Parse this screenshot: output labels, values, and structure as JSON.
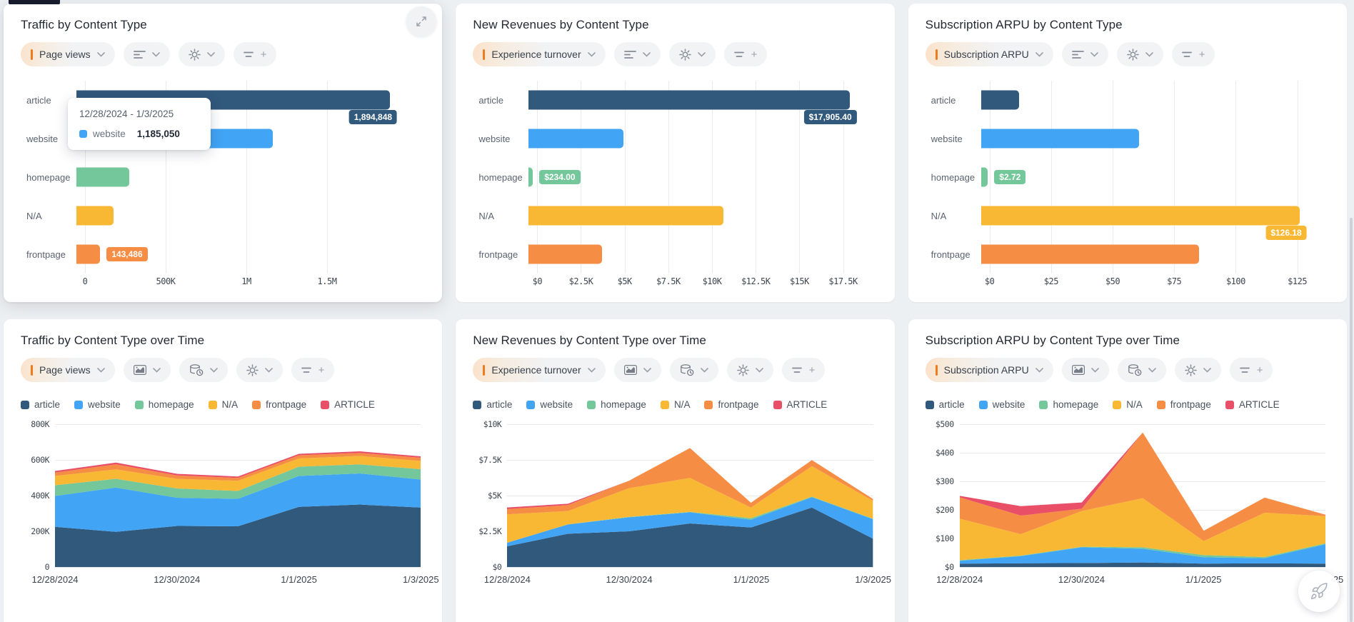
{
  "page": {
    "background": "#edf0f3",
    "accent_orange": "#ee7c1e",
    "top_tab_color": "#161b2e",
    "scrollbar_color": "#cdd2d8"
  },
  "palette": {
    "article": "#31597c",
    "website": "#41a4f4",
    "homepage": "#74c79a",
    "N/A": "#f9b834",
    "frontpage": "#f68d44",
    "ARTICLE": "#e94f66"
  },
  "cards": [
    {
      "title": "Traffic by Content Type",
      "metric": "Page views"
    },
    {
      "title": "New Revenues by Content Type",
      "metric": "Experience turnover"
    },
    {
      "title": "Subscription ARPU by Content Type",
      "metric": "Subscription ARPU"
    },
    {
      "title": "Traffic by Content Type over Time",
      "metric": "Page views"
    },
    {
      "title": "New Revenues by Content Type over Time",
      "metric": "Experience turnover"
    },
    {
      "title": "Subscription ARPU by Content Type over Time",
      "metric": "Subscription ARPU"
    }
  ],
  "tooltip": {
    "date_range": "12/28/2024 - 1/3/2025",
    "series": "website",
    "value": "1,185,050",
    "color": "#41a4f4"
  },
  "chart_data": [
    {
      "type": "bar",
      "orientation": "horizontal",
      "title": "Traffic by Content Type",
      "metric": "Page views",
      "categories": [
        "article",
        "website",
        "homepage",
        "N/A",
        "frontpage"
      ],
      "values": [
        1894848,
        1185050,
        321000,
        224600,
        143486
      ],
      "colors": [
        "#31597c",
        "#41a4f4",
        "#74c79a",
        "#f9b834",
        "#f68d44"
      ],
      "xticks": [
        {
          "label": "0",
          "value": 0
        },
        {
          "label": "500K",
          "value": 500000
        },
        {
          "label": "1M",
          "value": 1000000
        },
        {
          "label": "1.5M",
          "value": 1500000
        }
      ],
      "xmax": 2090000,
      "badges": [
        {
          "index": 0,
          "text": "1,894,848",
          "placement": "below-end"
        },
        {
          "index": 4,
          "text": "143,486",
          "placement": "right"
        }
      ]
    },
    {
      "type": "bar",
      "orientation": "horizontal",
      "title": "New Revenues by Content Type",
      "metric": "Experience turnover",
      "categories": [
        "article",
        "website",
        "homepage",
        "N/A",
        "frontpage"
      ],
      "values": [
        17905.4,
        5300,
        234.0,
        10850,
        4100
      ],
      "colors": [
        "#31597c",
        "#41a4f4",
        "#74c79a",
        "#f9b834",
        "#f68d44"
      ],
      "xticks": [
        {
          "label": "$0",
          "value": 0
        },
        {
          "label": "$2.5K",
          "value": 2500
        },
        {
          "label": "$5K",
          "value": 5000
        },
        {
          "label": "$7.5K",
          "value": 7500
        },
        {
          "label": "$10K",
          "value": 10000
        },
        {
          "label": "$12.5K",
          "value": 12500
        },
        {
          "label": "$15K",
          "value": 15000
        },
        {
          "label": "$17.5K",
          "value": 17500
        }
      ],
      "xmax": 19300,
      "badges": [
        {
          "index": 0,
          "text": "$17,905.40",
          "placement": "below-end"
        },
        {
          "index": 2,
          "text": "$234.00",
          "placement": "right"
        }
      ]
    },
    {
      "type": "bar",
      "orientation": "horizontal",
      "title": "Subscription ARPU by Content Type",
      "metric": "Subscription ARPU",
      "categories": [
        "article",
        "website",
        "homepage",
        "N/A",
        "frontpage"
      ],
      "values": [
        15.2,
        62.75,
        2.72,
        126.18,
        86.5
      ],
      "colors": [
        "#31597c",
        "#41a4f4",
        "#74c79a",
        "#f9b834",
        "#f68d44"
      ],
      "xticks": [
        {
          "label": "$0",
          "value": 0
        },
        {
          "label": "$25",
          "value": 25
        },
        {
          "label": "$50",
          "value": 50
        },
        {
          "label": "$75",
          "value": 75
        },
        {
          "label": "$100",
          "value": 100
        },
        {
          "label": "$125",
          "value": 125
        }
      ],
      "xmax": 137,
      "badges": [
        {
          "index": 3,
          "text": "$126.18",
          "placement": "below-end"
        },
        {
          "index": 2,
          "text": "$2.72",
          "placement": "right"
        }
      ]
    },
    {
      "type": "area",
      "stacked": true,
      "title": "Traffic by Content Type over Time",
      "metric": "Page views",
      "x": [
        "12/28/2024",
        "12/29/2024",
        "12/30/2024",
        "12/31/2024",
        "1/1/2025",
        "1/2/2025",
        "1/3/2025"
      ],
      "x_axis_labels": [
        {
          "label": "12/28/2024",
          "pos": 0
        },
        {
          "label": "12/30/2024",
          "pos": 2
        },
        {
          "label": "1/1/2025",
          "pos": 4
        },
        {
          "label": "1/3/2025",
          "pos": 6
        }
      ],
      "yticks": [
        {
          "label": "800K",
          "value": 800000
        },
        {
          "label": "600K",
          "value": 600000
        },
        {
          "label": "400K",
          "value": 400000
        },
        {
          "label": "200K",
          "value": 200000
        },
        {
          "label": "0",
          "value": 0
        }
      ],
      "ymax": 800000,
      "series": [
        {
          "name": "article",
          "values": [
            225000,
            197000,
            230000,
            228000,
            337000,
            350000,
            333000
          ]
        },
        {
          "name": "website",
          "values": [
            173000,
            248000,
            158000,
            154000,
            173000,
            174000,
            157000
          ]
        },
        {
          "name": "homepage",
          "values": [
            60000,
            49000,
            52000,
            44000,
            52000,
            51000,
            58000
          ]
        },
        {
          "name": "N/A",
          "values": [
            52000,
            53000,
            54000,
            57000,
            46000,
            47000,
            46000
          ]
        },
        {
          "name": "frontpage",
          "values": [
            19000,
            28000,
            19000,
            16000,
            18000,
            17000,
            18000
          ]
        },
        {
          "name": "ARTICLE",
          "values": [
            9000,
            10000,
            9000,
            8000,
            8000,
            9000,
            8000
          ]
        }
      ]
    },
    {
      "type": "area",
      "stacked": true,
      "title": "New Revenues by Content Type over Time",
      "metric": "Experience turnover",
      "x": [
        "12/28/2024",
        "12/29/2024",
        "12/30/2024",
        "12/31/2024",
        "1/1/2025",
        "1/2/2025",
        "1/3/2025"
      ],
      "x_axis_labels": [
        {
          "label": "12/28/2024",
          "pos": 0
        },
        {
          "label": "12/30/2024",
          "pos": 2
        },
        {
          "label": "1/1/2025",
          "pos": 4
        },
        {
          "label": "1/3/2025",
          "pos": 6
        }
      ],
      "yticks": [
        {
          "label": "$10K",
          "value": 10000
        },
        {
          "label": "$7.5K",
          "value": 7500
        },
        {
          "label": "$5K",
          "value": 5000
        },
        {
          "label": "$2.5K",
          "value": 2500
        },
        {
          "label": "$0",
          "value": 0
        }
      ],
      "ymax": 10000,
      "series": [
        {
          "name": "article",
          "values": [
            1450,
            2330,
            2500,
            3050,
            2770,
            4160,
            1990
          ]
        },
        {
          "name": "website",
          "values": [
            250,
            650,
            980,
            780,
            540,
            730,
            1360
          ]
        },
        {
          "name": "homepage",
          "values": [
            0,
            10,
            30,
            30,
            110,
            40,
            30
          ]
        },
        {
          "name": "N/A",
          "values": [
            1990,
            930,
            2010,
            2380,
            740,
            2130,
            1260
          ]
        },
        {
          "name": "frontpage",
          "values": [
            360,
            420,
            520,
            2090,
            340,
            430,
            130
          ]
        },
        {
          "name": "ARTICLE",
          "values": [
            120,
            90,
            0,
            0,
            0,
            0,
            0
          ]
        }
      ]
    },
    {
      "type": "area",
      "stacked": true,
      "title": "Subscription ARPU by Content Type over Time",
      "metric": "Subscription ARPU",
      "x": [
        "12/28/2024",
        "12/29/2024",
        "12/30/2024",
        "12/31/2024",
        "1/1/2025",
        "1/2/2025",
        "1/3/2025"
      ],
      "x_axis_labels": [
        {
          "label": "12/28/2024",
          "pos": 0
        },
        {
          "label": "12/30/2024",
          "pos": 2
        },
        {
          "label": "1/1/2025",
          "pos": 4
        },
        {
          "label": "1/3/2025",
          "pos": 6
        }
      ],
      "yticks": [
        {
          "label": "$500",
          "value": 500
        },
        {
          "label": "$400",
          "value": 400
        },
        {
          "label": "$300",
          "value": 300
        },
        {
          "label": "$200",
          "value": 200
        },
        {
          "label": "$100",
          "value": 100
        },
        {
          "label": "$0",
          "value": 0
        }
      ],
      "ymax": 500,
      "series": [
        {
          "name": "article",
          "values": [
            12,
            13,
            14,
            16,
            12,
            13,
            12
          ]
        },
        {
          "name": "website",
          "values": [
            10,
            25,
            55,
            48,
            22,
            18,
            68
          ]
        },
        {
          "name": "homepage",
          "values": [
            2,
            2,
            2,
            5,
            8,
            4,
            3
          ]
        },
        {
          "name": "N/A",
          "values": [
            145,
            75,
            125,
            172,
            49,
            155,
            95
          ]
        },
        {
          "name": "frontpage",
          "values": [
            75,
            65,
            8,
            230,
            36,
            53,
            5
          ]
        },
        {
          "name": "ARTICLE",
          "values": [
            5,
            33,
            22,
            0,
            0,
            0,
            0
          ]
        }
      ]
    }
  ]
}
